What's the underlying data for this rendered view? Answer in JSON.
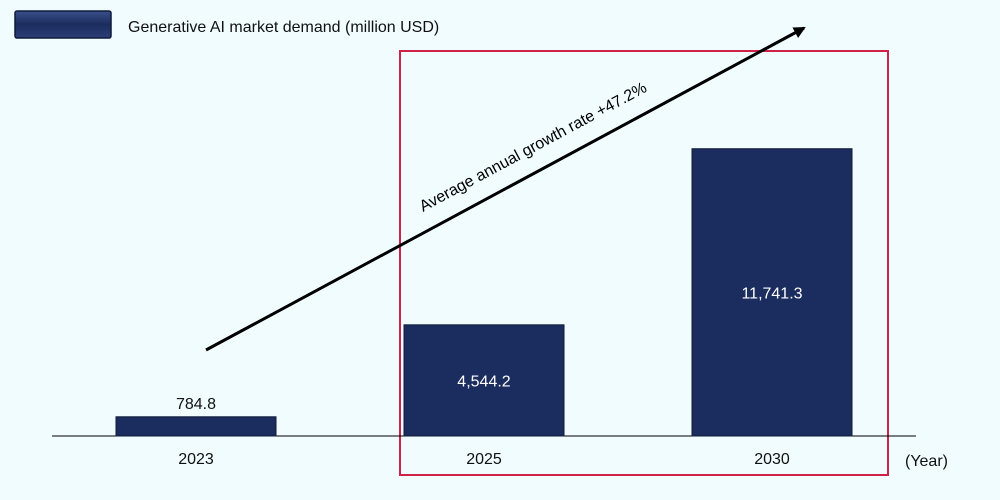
{
  "chart_data": {
    "type": "bar",
    "categories": [
      "2023",
      "2025",
      "2030"
    ],
    "series": [
      {
        "name": "Generative AI market demand (million USD)",
        "values": [
          784.8,
          4544.2,
          11741.3
        ],
        "value_labels": [
          "784.8",
          "4,544.2",
          "11,741.3"
        ]
      }
    ],
    "xlabel": "(Year)",
    "ylabel": "",
    "ylim": [
      0,
      15000
    ],
    "grid": false,
    "legend_position": "top-left",
    "annotation": "Average annual growth rate   +47.2%",
    "highlight_categories": [
      "2025",
      "2030"
    ],
    "colors": {
      "bar": "#1b2c5e",
      "bar_border": "#0f1a3a",
      "highlight_box": "#d0214a",
      "arrow": "#000000",
      "background": "#f0fcfe",
      "inside_label": "#ffffff",
      "outside_label": "#111111"
    }
  }
}
